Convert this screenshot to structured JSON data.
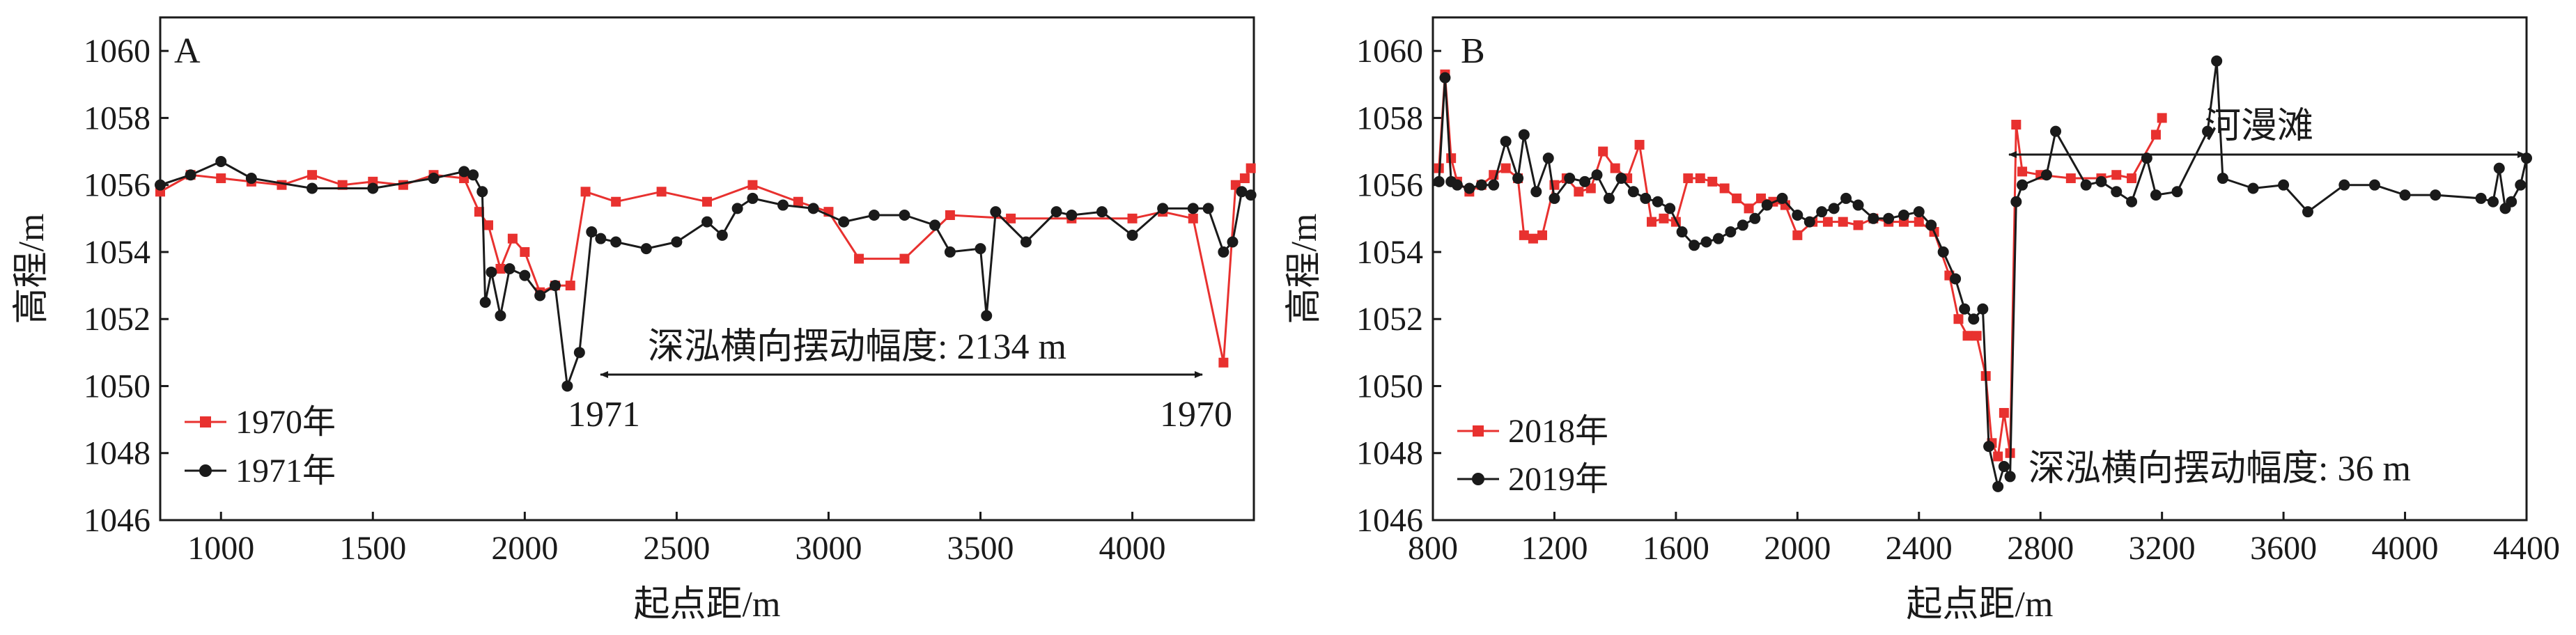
{
  "chart_data": [
    {
      "type": "line",
      "panel_label": "A",
      "xlabel": "起点距/m",
      "ylabel": "高程/m",
      "xlim": [
        800,
        4400
      ],
      "ylim": [
        1046,
        1061
      ],
      "xticks": [
        1000,
        1500,
        2000,
        2500,
        3000,
        3500,
        4000
      ],
      "xtick_labels": [
        "1000",
        "1500",
        "2000",
        "2500",
        "3000",
        "3500",
        "4000"
      ],
      "yticks": [
        1046,
        1048,
        1050,
        1052,
        1054,
        1056,
        1058,
        1060
      ],
      "ytick_labels": [
        "1046",
        "1048",
        "1050",
        "1052",
        "1054",
        "1056",
        "1058",
        "1060"
      ],
      "legend_position": "bottom-left",
      "series": [
        {
          "name": "1970年",
          "color": "#e8312f",
          "marker": "square",
          "x": [
            800,
            900,
            1000,
            1100,
            1200,
            1300,
            1400,
            1500,
            1600,
            1700,
            1800,
            1850,
            1880,
            1920,
            1960,
            2000,
            2050,
            2100,
            2150,
            2200,
            2300,
            2450,
            2600,
            2750,
            2900,
            3000,
            3100,
            3250,
            3400,
            3600,
            3800,
            4000,
            4100,
            4200,
            4300,
            4340,
            4370,
            4390
          ],
          "y": [
            1055.8,
            1056.3,
            1056.2,
            1056.1,
            1056.0,
            1056.3,
            1056.0,
            1056.1,
            1056.0,
            1056.3,
            1056.2,
            1055.2,
            1054.8,
            1053.5,
            1054.4,
            1054.0,
            1052.8,
            1053.0,
            1053.0,
            1055.8,
            1055.5,
            1055.8,
            1055.5,
            1056.0,
            1055.5,
            1055.2,
            1053.8,
            1053.8,
            1055.1,
            1055.0,
            1055.0,
            1055.0,
            1055.2,
            1055.0,
            1050.7,
            1056.0,
            1056.2,
            1056.5
          ]
        },
        {
          "name": "1971年",
          "color": "#1a1a1a",
          "marker": "circle",
          "x": [
            800,
            900,
            1000,
            1100,
            1300,
            1500,
            1700,
            1800,
            1830,
            1860,
            1870,
            1890,
            1920,
            1950,
            2000,
            2050,
            2100,
            2140,
            2180,
            2220,
            2250,
            2300,
            2400,
            2500,
            2600,
            2650,
            2700,
            2750,
            2850,
            2950,
            3050,
            3150,
            3250,
            3350,
            3400,
            3500,
            3520,
            3550,
            3650,
            3750,
            3800,
            3900,
            4000,
            4100,
            4200,
            4250,
            4300,
            4330,
            4360,
            4390
          ],
          "y": [
            1056.0,
            1056.3,
            1056.7,
            1056.2,
            1055.9,
            1055.9,
            1056.2,
            1056.4,
            1056.3,
            1055.8,
            1052.5,
            1053.4,
            1052.1,
            1053.5,
            1053.3,
            1052.7,
            1053.0,
            1050.0,
            1051.0,
            1054.6,
            1054.4,
            1054.3,
            1054.1,
            1054.3,
            1054.9,
            1054.5,
            1055.3,
            1055.6,
            1055.4,
            1055.3,
            1054.9,
            1055.1,
            1055.1,
            1054.8,
            1054.0,
            1054.1,
            1052.1,
            1055.2,
            1054.3,
            1055.2,
            1055.1,
            1055.2,
            1054.5,
            1055.3,
            1055.3,
            1055.3,
            1054.0,
            1054.3,
            1055.8,
            1055.7
          ]
        }
      ],
      "annotations": [
        {
          "text": "深泓横向摆动幅度: 2134 m",
          "x_from": 2140,
          "x_to": 4300,
          "y": 1050.1
        },
        {
          "text": "1971",
          "x": 2140
        },
        {
          "text": "1970",
          "x": 4300
        }
      ]
    },
    {
      "type": "line",
      "panel_label": "B",
      "xlabel": "起点距/m",
      "ylabel": "高程/m",
      "xlim": [
        800,
        4400
      ],
      "ylim": [
        1046,
        1061
      ],
      "xticks": [
        800,
        1200,
        1600,
        2000,
        2400,
        2800,
        3200,
        3600,
        4000,
        4400
      ],
      "xtick_labels": [
        "800",
        "1200",
        "1600",
        "2000",
        "2400",
        "2800",
        "3200",
        "3600",
        "4000",
        "4400"
      ],
      "yticks": [
        1046,
        1048,
        1050,
        1052,
        1054,
        1056,
        1058,
        1060
      ],
      "ytick_labels": [
        "1046",
        "1048",
        "1050",
        "1052",
        "1054",
        "1056",
        "1058",
        "1060"
      ],
      "legend_position": "bottom-left",
      "series": [
        {
          "name": "2018年",
          "color": "#e8312f",
          "marker": "square",
          "x": [
            820,
            840,
            860,
            880,
            920,
            960,
            1000,
            1040,
            1080,
            1100,
            1130,
            1160,
            1200,
            1240,
            1280,
            1320,
            1360,
            1400,
            1440,
            1480,
            1520,
            1560,
            1600,
            1640,
            1680,
            1720,
            1760,
            1800,
            1840,
            1880,
            1920,
            1960,
            2000,
            2050,
            2100,
            2150,
            2200,
            2250,
            2300,
            2350,
            2400,
            2450,
            2500,
            2530,
            2560,
            2590,
            2620,
            2640,
            2660,
            2680,
            2700,
            2720,
            2740,
            2800,
            2900,
            3000,
            3050,
            3100,
            3180,
            3200
          ],
          "y": [
            1056.5,
            1059.3,
            1056.8,
            1056.1,
            1055.8,
            1056.0,
            1056.3,
            1056.5,
            1056.2,
            1054.5,
            1054.4,
            1054.5,
            1056.0,
            1056.2,
            1055.8,
            1055.9,
            1057.0,
            1056.5,
            1056.2,
            1057.2,
            1054.9,
            1055.0,
            1054.9,
            1056.2,
            1056.2,
            1056.1,
            1055.9,
            1055.6,
            1055.3,
            1055.6,
            1055.5,
            1055.4,
            1054.5,
            1054.9,
            1054.9,
            1054.9,
            1054.8,
            1055.0,
            1054.9,
            1054.9,
            1054.9,
            1054.6,
            1053.3,
            1052.0,
            1051.5,
            1051.5,
            1050.3,
            1048.3,
            1047.9,
            1049.2,
            1048.0,
            1057.8,
            1056.4,
            1056.3,
            1056.2,
            1056.2,
            1056.3,
            1056.2,
            1057.5,
            1058.0
          ]
        },
        {
          "name": "2019年",
          "color": "#1a1a1a",
          "marker": "circle",
          "x": [
            820,
            840,
            860,
            880,
            920,
            960,
            1000,
            1040,
            1080,
            1100,
            1140,
            1180,
            1200,
            1250,
            1300,
            1340,
            1380,
            1420,
            1460,
            1500,
            1540,
            1580,
            1620,
            1660,
            1700,
            1740,
            1780,
            1820,
            1860,
            1900,
            1950,
            2000,
            2040,
            2080,
            2120,
            2160,
            2200,
            2250,
            2300,
            2350,
            2400,
            2440,
            2480,
            2520,
            2550,
            2580,
            2610,
            2630,
            2660,
            2680,
            2700,
            2720,
            2740,
            2820,
            2850,
            2950,
            3000,
            3050,
            3100,
            3150,
            3180,
            3250,
            3350,
            3380,
            3400,
            3500,
            3600,
            3680,
            3800,
            3900,
            4000,
            4100,
            4250,
            4290,
            4310,
            4330,
            4350,
            4380,
            4400
          ],
          "y": [
            1056.1,
            1059.2,
            1056.1,
            1056.0,
            1055.9,
            1056.0,
            1056.0,
            1057.3,
            1056.2,
            1057.5,
            1055.8,
            1056.8,
            1055.6,
            1056.2,
            1056.1,
            1056.3,
            1055.6,
            1056.2,
            1055.8,
            1055.6,
            1055.5,
            1055.3,
            1054.6,
            1054.2,
            1054.3,
            1054.4,
            1054.6,
            1054.8,
            1055.0,
            1055.4,
            1055.6,
            1055.1,
            1054.9,
            1055.2,
            1055.3,
            1055.6,
            1055.4,
            1055.0,
            1055.0,
            1055.1,
            1055.2,
            1054.8,
            1054.0,
            1053.2,
            1052.3,
            1052.0,
            1052.3,
            1048.2,
            1047.0,
            1047.6,
            1047.3,
            1055.5,
            1056.0,
            1056.3,
            1057.6,
            1056.0,
            1056.1,
            1055.8,
            1055.5,
            1056.8,
            1055.7,
            1055.8,
            1057.6,
            1059.7,
            1056.2,
            1055.9,
            1056.0,
            1055.2,
            1056.0,
            1056.0,
            1055.7,
            1055.7,
            1055.6,
            1055.5,
            1056.5,
            1055.3,
            1055.5,
            1056.0,
            1056.8
          ]
        }
      ],
      "annotations": [
        {
          "text": "深泓横向摆动幅度: 36 m",
          "x": 2660
        },
        {
          "text": "河漫滩",
          "x_from": 2720,
          "x_to": 4400,
          "y": 1057.0
        }
      ]
    }
  ]
}
